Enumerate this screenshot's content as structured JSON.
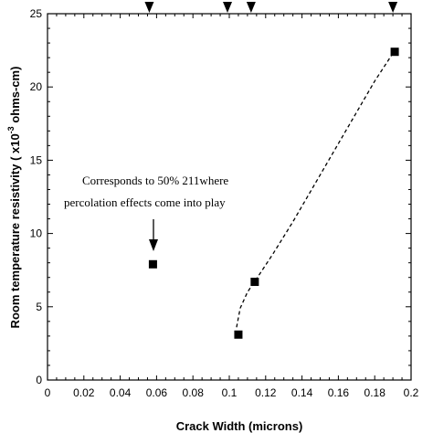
{
  "chart_data": {
    "type": "scatter",
    "xlabel": "Crack Width (microns)",
    "ylabel_main": "Room temperature resistivity ( x10",
    "ylabel_exp": "-3",
    "ylabel_unit": " ohms-cm)",
    "xlim": [
      0,
      0.2
    ],
    "ylim": [
      0,
      25
    ],
    "x_ticks": [
      "0",
      "0.02",
      "0.04",
      "0.06",
      "0.08",
      "0.1",
      "0.12",
      "0.14",
      "0.16",
      "0.18",
      "0.2"
    ],
    "y_ticks": [
      "0",
      "5",
      "10",
      "15",
      "20",
      "25"
    ],
    "points": [
      {
        "x": 0.058,
        "y": 7.9
      },
      {
        "x": 0.105,
        "y": 3.1
      },
      {
        "x": 0.114,
        "y": 6.7
      },
      {
        "x": 0.191,
        "y": 22.4
      }
    ],
    "fit_curve": [
      {
        "x": 0.104,
        "y": 3.6
      },
      {
        "x": 0.106,
        "y": 4.9
      },
      {
        "x": 0.11,
        "y": 6.0
      },
      {
        "x": 0.116,
        "y": 7.1
      },
      {
        "x": 0.124,
        "y": 8.6
      },
      {
        "x": 0.135,
        "y": 10.8
      },
      {
        "x": 0.15,
        "y": 14.0
      },
      {
        "x": 0.165,
        "y": 17.2
      },
      {
        "x": 0.18,
        "y": 20.4
      },
      {
        "x": 0.19,
        "y": 22.3
      }
    ],
    "top_arrows_x": [
      0.056,
      0.099,
      0.112,
      0.19
    ],
    "annotation": {
      "line1": "Corresponds to 50% 211where",
      "line2": "percolation effects come into play",
      "points_to": {
        "x": 0.058,
        "y": 7.9
      }
    }
  }
}
